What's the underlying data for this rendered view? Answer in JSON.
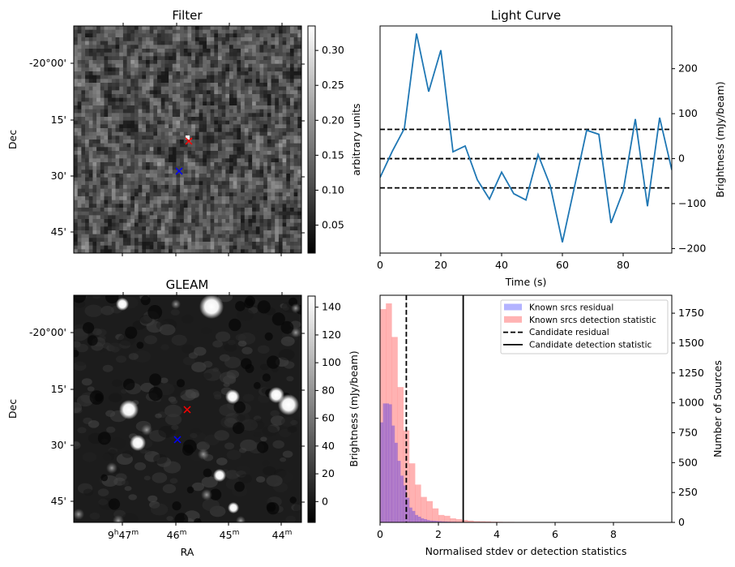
{
  "chart_data": [
    {
      "type": "heatmap",
      "title": "Filter",
      "xlabel": "",
      "ylabel": "Dec",
      "y_ticks": [
        "-20°00'",
        "15'",
        "30'",
        "45'"
      ],
      "x_ticks_labeled": false,
      "colorbar": {
        "label": "arbitrary units",
        "ticks": [
          "0.05",
          "0.10",
          "0.15",
          "0.20",
          "0.25",
          "0.30"
        ],
        "range": [
          0.01,
          0.335
        ],
        "colormap": "gray"
      },
      "markers": [
        {
          "name": "candidate",
          "color": "#ff0000",
          "symbol": "x"
        },
        {
          "name": "known-source",
          "color": "#0000ff",
          "symbol": "x"
        }
      ]
    },
    {
      "type": "line",
      "title": "Light Curve",
      "xlabel": "Time (s)",
      "ylabel": "Brightness (mJy/beam)",
      "xlim": [
        0,
        96
      ],
      "ylim": [
        -210,
        295
      ],
      "x_ticks": [
        0,
        20,
        40,
        60,
        80
      ],
      "y_ticks": [
        -200,
        -100,
        0,
        100,
        200
      ],
      "y_axis_side": "right",
      "series": [
        {
          "name": "light curve",
          "color": "#1f77b4",
          "x": [
            0,
            4,
            8,
            12,
            16,
            20,
            24,
            28,
            32,
            36,
            40,
            44,
            48,
            52,
            56,
            60,
            64,
            68,
            72,
            76,
            80,
            84,
            88,
            92,
            96
          ],
          "y": [
            -42,
            16,
            67,
            278,
            149,
            241,
            15,
            28,
            -47,
            -90,
            -30,
            -78,
            -92,
            9,
            -60,
            -186,
            -62,
            63,
            54,
            -143,
            -72,
            88,
            -106,
            91,
            -25
          ]
        }
      ],
      "hlines": [
        {
          "y": 65,
          "style": "dashed",
          "color": "#000000"
        },
        {
          "y": 0,
          "style": "dashed",
          "color": "#000000"
        },
        {
          "y": -65,
          "style": "dashed",
          "color": "#000000"
        }
      ]
    },
    {
      "type": "heatmap",
      "title": "GLEAM",
      "xlabel": "RA",
      "ylabel": "Dec",
      "x_ticks": [
        "9h47m",
        "46m",
        "45m",
        "44m"
      ],
      "y_ticks": [
        "-20°00'",
        "15'",
        "30'",
        "45'"
      ],
      "colorbar": {
        "label": "Brightness (mJy/beam)",
        "ticks": [
          "0",
          "20",
          "40",
          "60",
          "80",
          "100",
          "120",
          "140"
        ],
        "range": [
          -15,
          148
        ],
        "colormap": "gray"
      },
      "markers": [
        {
          "name": "candidate",
          "color": "#ff0000",
          "symbol": "x"
        },
        {
          "name": "known-source",
          "color": "#0000ff",
          "symbol": "x"
        }
      ]
    },
    {
      "type": "bar",
      "subtype": "histogram",
      "title": "",
      "xlabel": "Normalised stdev or detection statistics",
      "ylabel": "Number of Sources",
      "y_axis_side": "right",
      "xlim": [
        0,
        10
      ],
      "ylim": [
        0,
        1900
      ],
      "x_ticks": [
        0,
        2,
        4,
        6,
        8
      ],
      "y_ticks": [
        0,
        250,
        500,
        750,
        1000,
        1250,
        1500,
        1750
      ],
      "legend_position": "top-right",
      "series": [
        {
          "name": "Known srcs residual",
          "color": "#b3b3ff",
          "bin_width": 0.1,
          "bin_start": 0,
          "values": [
            837,
            995,
            995,
            988,
            810,
            666,
            515,
            391,
            309,
            206,
            124,
            96,
            62,
            48,
            34,
            27,
            20,
            15,
            14,
            12,
            10,
            8,
            7,
            6,
            5,
            5,
            4,
            4,
            3,
            3,
            3,
            2,
            2,
            2,
            2,
            1,
            1,
            1,
            1,
            1
          ]
        },
        {
          "name": "Known srcs detection statistic",
          "color": "#ffb3b3",
          "bin_width": 0.2,
          "bin_start": 0,
          "values": [
            1784,
            1832,
            1551,
            1132,
            769,
            494,
            316,
            213,
            178,
            117,
            62,
            55,
            34,
            27,
            20,
            15,
            10,
            9,
            8,
            6,
            5,
            4,
            4,
            0,
            3,
            3,
            3,
            3,
            3,
            0,
            3,
            0,
            3,
            0,
            0,
            3,
            0,
            2,
            0,
            0,
            0,
            0,
            2,
            0,
            0,
            0,
            0,
            2
          ]
        }
      ],
      "vlines": [
        {
          "name": "Candidate residual",
          "x": 0.9,
          "style": "dashed",
          "color": "#000000"
        },
        {
          "name": "Candidate detection statistic",
          "x": 2.85,
          "style": "solid",
          "color": "#000000"
        }
      ],
      "legend": [
        {
          "label": "Known srcs residual",
          "kind": "patch",
          "color": "#b3b3ff"
        },
        {
          "label": "Known srcs detection statistic",
          "kind": "patch",
          "color": "#ffb3b3"
        },
        {
          "label": "Candidate residual",
          "kind": "dashed-line",
          "color": "#000000"
        },
        {
          "label": "Candidate detection statistic",
          "kind": "solid-line",
          "color": "#000000"
        }
      ]
    }
  ]
}
